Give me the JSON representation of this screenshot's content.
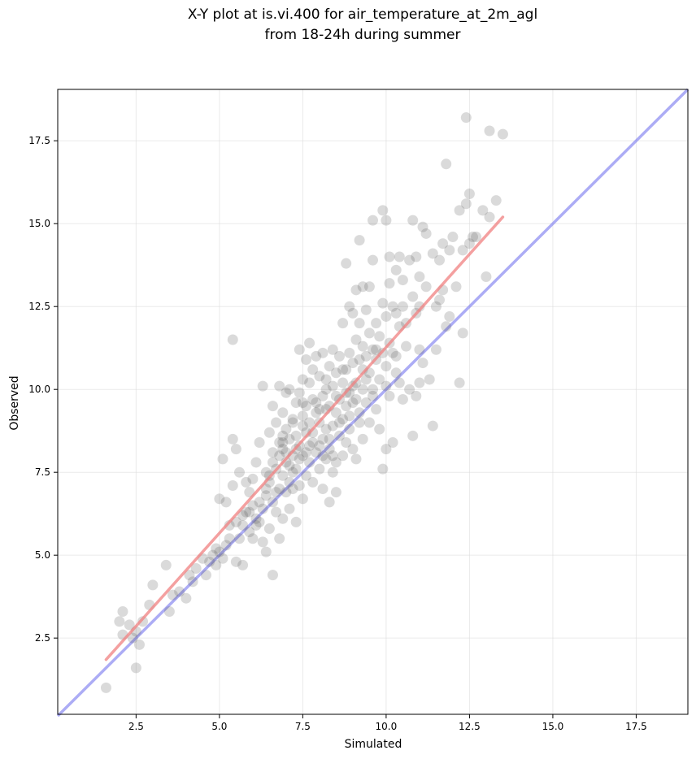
{
  "chart_data": {
    "type": "scatter",
    "title_lines": [
      "X-Y plot at is.vi.400 for air_temperature_at_2m_agl",
      "from 18-24h during summer"
    ],
    "xlabel": "Simulated",
    "ylabel": "Observed",
    "xlim": [
      0.15,
      19.05
    ],
    "ylim": [
      0.2,
      19.05
    ],
    "xticks": [
      2.5,
      5.0,
      7.5,
      10.0,
      12.5,
      15.0,
      17.5
    ],
    "yticks": [
      2.5,
      5.0,
      7.5,
      10.0,
      12.5,
      15.0,
      17.5
    ],
    "xtick_labels": [
      "2.5",
      "5.0",
      "7.5",
      "10.0",
      "12.5",
      "15.0",
      "17.5"
    ],
    "ytick_labels": [
      "2.5",
      "5.0",
      "7.5",
      "10.0",
      "12.5",
      "15.0",
      "17.5"
    ],
    "grid": true,
    "colors": {
      "points": "#555555",
      "fit_line": "#f08080",
      "identity_line": "#8080f0"
    },
    "fit_line": {
      "x": [
        1.6,
        13.5
      ],
      "y": [
        1.85,
        15.2
      ]
    },
    "identity_line": {
      "x": [
        0.15,
        19.05
      ],
      "y": [
        0.15,
        19.05
      ]
    },
    "points": [
      [
        1.6,
        1.0
      ],
      [
        2.0,
        3.0
      ],
      [
        2.1,
        3.3
      ],
      [
        2.1,
        2.6
      ],
      [
        2.3,
        2.9
      ],
      [
        2.4,
        2.5
      ],
      [
        2.5,
        2.7
      ],
      [
        2.5,
        1.6
      ],
      [
        2.6,
        2.3
      ],
      [
        2.7,
        3.0
      ],
      [
        2.9,
        3.5
      ],
      [
        3.0,
        4.1
      ],
      [
        3.4,
        4.7
      ],
      [
        3.5,
        3.3
      ],
      [
        3.6,
        3.8
      ],
      [
        3.8,
        3.9
      ],
      [
        4.0,
        3.7
      ],
      [
        4.1,
        4.4
      ],
      [
        4.2,
        4.2
      ],
      [
        4.3,
        4.6
      ],
      [
        4.5,
        4.9
      ],
      [
        4.6,
        4.4
      ],
      [
        4.7,
        4.8
      ],
      [
        4.8,
        5.0
      ],
      [
        4.9,
        4.7
      ],
      [
        5.0,
        6.7
      ],
      [
        5.0,
        5.1
      ],
      [
        5.1,
        7.9
      ],
      [
        5.1,
        4.9
      ],
      [
        5.2,
        6.6
      ],
      [
        5.2,
        5.3
      ],
      [
        5.3,
        5.9
      ],
      [
        5.4,
        7.1
      ],
      [
        5.4,
        11.5
      ],
      [
        5.4,
        8.5
      ],
      [
        5.5,
        8.2
      ],
      [
        5.5,
        6.0
      ],
      [
        5.5,
        4.8
      ],
      [
        5.6,
        7.5
      ],
      [
        5.6,
        5.5
      ],
      [
        5.7,
        6.2
      ],
      [
        5.7,
        4.7
      ],
      [
        5.8,
        7.2
      ],
      [
        5.8,
        6.3
      ],
      [
        5.9,
        6.9
      ],
      [
        5.9,
        5.7
      ],
      [
        6.0,
        7.3
      ],
      [
        6.0,
        6.5
      ],
      [
        6.0,
        5.5
      ],
      [
        6.1,
        7.8
      ],
      [
        6.1,
        5.9
      ],
      [
        6.2,
        8.4
      ],
      [
        6.2,
        6.0
      ],
      [
        6.3,
        6.4
      ],
      [
        6.3,
        5.4
      ],
      [
        6.3,
        10.1
      ],
      [
        6.4,
        7.5
      ],
      [
        6.4,
        6.8
      ],
      [
        6.4,
        5.1
      ],
      [
        6.5,
        8.7
      ],
      [
        6.5,
        7.2
      ],
      [
        6.5,
        5.8
      ],
      [
        6.6,
        9.5
      ],
      [
        6.6,
        8.1
      ],
      [
        6.6,
        6.6
      ],
      [
        6.6,
        4.4
      ],
      [
        6.7,
        9.0
      ],
      [
        6.7,
        7.6
      ],
      [
        6.7,
        6.3
      ],
      [
        6.8,
        10.1
      ],
      [
        6.8,
        8.4
      ],
      [
        6.8,
        7.0
      ],
      [
        6.8,
        5.5
      ],
      [
        6.9,
        9.3
      ],
      [
        6.9,
        8.2
      ],
      [
        6.9,
        7.4
      ],
      [
        6.9,
        6.1
      ],
      [
        7.0,
        9.9
      ],
      [
        7.0,
        8.8
      ],
      [
        7.0,
        7.8
      ],
      [
        7.0,
        6.9
      ],
      [
        7.1,
        10.0
      ],
      [
        7.1,
        8.5
      ],
      [
        7.1,
        7.2
      ],
      [
        7.1,
        6.4
      ],
      [
        7.2,
        9.1
      ],
      [
        7.2,
        8.0
      ],
      [
        7.2,
        7.0
      ],
      [
        7.3,
        9.6
      ],
      [
        7.3,
        8.6
      ],
      [
        7.3,
        7.6
      ],
      [
        7.3,
        6.0
      ],
      [
        7.4,
        11.2
      ],
      [
        7.4,
        9.9
      ],
      [
        7.4,
        8.3
      ],
      [
        7.4,
        7.1
      ],
      [
        7.5,
        10.3
      ],
      [
        7.5,
        9.2
      ],
      [
        7.5,
        8.0
      ],
      [
        7.5,
        6.7
      ],
      [
        7.6,
        10.9
      ],
      [
        7.6,
        9.5
      ],
      [
        7.6,
        8.7
      ],
      [
        7.6,
        7.4
      ],
      [
        7.7,
        11.4
      ],
      [
        7.7,
        10.2
      ],
      [
        7.7,
        9.0
      ],
      [
        7.7,
        7.8
      ],
      [
        7.8,
        10.6
      ],
      [
        7.8,
        9.7
      ],
      [
        7.8,
        8.4
      ],
      [
        7.8,
        7.2
      ],
      [
        7.9,
        11.0
      ],
      [
        7.9,
        9.3
      ],
      [
        7.9,
        8.1
      ],
      [
        8.0,
        10.4
      ],
      [
        8.0,
        9.0
      ],
      [
        8.0,
        7.6
      ],
      [
        8.1,
        11.1
      ],
      [
        8.1,
        9.8
      ],
      [
        8.1,
        8.5
      ],
      [
        8.1,
        7.0
      ],
      [
        8.2,
        10.0
      ],
      [
        8.2,
        8.8
      ],
      [
        8.2,
        7.9
      ],
      [
        8.3,
        10.7
      ],
      [
        8.3,
        9.5
      ],
      [
        8.3,
        8.2
      ],
      [
        8.3,
        6.6
      ],
      [
        8.4,
        11.2
      ],
      [
        8.4,
        10.1
      ],
      [
        8.4,
        8.9
      ],
      [
        8.4,
        7.5
      ],
      [
        8.5,
        10.5
      ],
      [
        8.5,
        9.3
      ],
      [
        8.5,
        7.8
      ],
      [
        8.5,
        6.9
      ],
      [
        8.6,
        11.0
      ],
      [
        8.6,
        9.7
      ],
      [
        8.6,
        8.6
      ],
      [
        8.7,
        12.0
      ],
      [
        8.7,
        10.2
      ],
      [
        8.7,
        9.1
      ],
      [
        8.7,
        8.0
      ],
      [
        8.8,
        13.8
      ],
      [
        8.8,
        10.6
      ],
      [
        8.8,
        9.5
      ],
      [
        8.8,
        8.4
      ],
      [
        8.9,
        12.5
      ],
      [
        8.9,
        11.1
      ],
      [
        8.9,
        9.9
      ],
      [
        8.9,
        8.8
      ],
      [
        9.0,
        12.3
      ],
      [
        9.0,
        10.8
      ],
      [
        9.0,
        9.6
      ],
      [
        9.0,
        8.2
      ],
      [
        9.1,
        13.0
      ],
      [
        9.1,
        11.5
      ],
      [
        9.1,
        10.2
      ],
      [
        9.1,
        7.9
      ],
      [
        9.2,
        14.5
      ],
      [
        9.2,
        12.0
      ],
      [
        9.2,
        10.9
      ],
      [
        9.2,
        9.3
      ],
      [
        9.3,
        13.1
      ],
      [
        9.3,
        11.3
      ],
      [
        9.3,
        10.0
      ],
      [
        9.3,
        8.5
      ],
      [
        9.4,
        12.4
      ],
      [
        9.4,
        11.0
      ],
      [
        9.4,
        9.6
      ],
      [
        9.5,
        13.1
      ],
      [
        9.5,
        11.7
      ],
      [
        9.5,
        10.5
      ],
      [
        9.5,
        9.0
      ],
      [
        9.6,
        15.1
      ],
      [
        9.6,
        13.9
      ],
      [
        9.6,
        11.2
      ],
      [
        9.6,
        9.8
      ],
      [
        9.7,
        12.0
      ],
      [
        9.7,
        10.9
      ],
      [
        9.7,
        9.4
      ],
      [
        9.8,
        11.6
      ],
      [
        9.8,
        10.3
      ],
      [
        9.8,
        8.8
      ],
      [
        9.9,
        15.4
      ],
      [
        9.9,
        12.6
      ],
      [
        9.9,
        11.1
      ],
      [
        9.9,
        7.6
      ],
      [
        10.0,
        15.1
      ],
      [
        10.0,
        12.2
      ],
      [
        10.0,
        10.7
      ],
      [
        10.0,
        8.2
      ],
      [
        10.1,
        14.0
      ],
      [
        10.1,
        13.2
      ],
      [
        10.1,
        11.4
      ],
      [
        10.1,
        9.8
      ],
      [
        10.2,
        12.5
      ],
      [
        10.2,
        11.1
      ],
      [
        10.2,
        8.4
      ],
      [
        10.3,
        13.6
      ],
      [
        10.3,
        12.3
      ],
      [
        10.3,
        10.5
      ],
      [
        10.4,
        14.0
      ],
      [
        10.4,
        11.9
      ],
      [
        10.4,
        10.2
      ],
      [
        10.5,
        13.3
      ],
      [
        10.5,
        12.5
      ],
      [
        10.5,
        9.7
      ],
      [
        10.6,
        11.3
      ],
      [
        10.7,
        13.9
      ],
      [
        10.7,
        10.0
      ],
      [
        10.8,
        15.1
      ],
      [
        10.8,
        12.8
      ],
      [
        10.8,
        8.6
      ],
      [
        10.9,
        14.0
      ],
      [
        10.9,
        12.3
      ],
      [
        10.9,
        9.8
      ],
      [
        11.0,
        13.4
      ],
      [
        11.0,
        11.2
      ],
      [
        11.0,
        10.2
      ],
      [
        11.1,
        14.9
      ],
      [
        11.1,
        10.8
      ],
      [
        11.2,
        14.7
      ],
      [
        11.2,
        13.1
      ],
      [
        11.3,
        10.3
      ],
      [
        11.4,
        14.1
      ],
      [
        11.4,
        8.9
      ],
      [
        11.5,
        12.5
      ],
      [
        11.5,
        11.2
      ],
      [
        11.6,
        13.9
      ],
      [
        11.6,
        12.7
      ],
      [
        11.7,
        14.4
      ],
      [
        11.7,
        13.0
      ],
      [
        11.8,
        16.8
      ],
      [
        11.8,
        11.9
      ],
      [
        11.9,
        14.2
      ],
      [
        11.9,
        12.2
      ],
      [
        12.0,
        14.6
      ],
      [
        12.1,
        13.1
      ],
      [
        12.2,
        15.4
      ],
      [
        12.2,
        10.2
      ],
      [
        12.3,
        14.2
      ],
      [
        12.3,
        11.7
      ],
      [
        12.4,
        18.2
      ],
      [
        12.4,
        15.6
      ],
      [
        12.5,
        15.9
      ],
      [
        12.5,
        14.4
      ],
      [
        12.6,
        14.6
      ],
      [
        12.7,
        14.6
      ],
      [
        12.9,
        15.4
      ],
      [
        13.0,
        13.4
      ],
      [
        13.1,
        17.8
      ],
      [
        13.1,
        15.2
      ],
      [
        13.3,
        15.7
      ],
      [
        13.5,
        17.7
      ],
      [
        6.6,
        7.8
      ],
      [
        6.9,
        8.4
      ],
      [
        7.2,
        7.5
      ],
      [
        7.6,
        8.1
      ],
      [
        7.8,
        8.7
      ],
      [
        8.0,
        8.3
      ],
      [
        8.2,
        9.4
      ],
      [
        8.4,
        8.0
      ],
      [
        8.6,
        9.0
      ],
      [
        8.8,
        9.9
      ],
      [
        9.0,
        10.1
      ],
      [
        9.2,
        9.0
      ],
      [
        9.4,
        10.3
      ],
      [
        9.6,
        10.0
      ],
      [
        7.4,
        7.9
      ],
      [
        7.0,
        8.1
      ],
      [
        6.7,
        6.9
      ],
      [
        6.4,
        7.0
      ],
      [
        6.2,
        6.6
      ],
      [
        6.8,
        8.0
      ],
      [
        7.5,
        8.9
      ],
      [
        7.9,
        9.6
      ],
      [
        8.3,
        8.5
      ],
      [
        8.5,
        9.8
      ],
      [
        8.9,
        9.2
      ],
      [
        9.3,
        10.6
      ],
      [
        9.7,
        11.2
      ],
      [
        10.0,
        10.1
      ],
      [
        10.3,
        11.0
      ],
      [
        10.6,
        12.0
      ],
      [
        11.0,
        12.5
      ],
      [
        7.1,
        7.7
      ],
      [
        7.3,
        8.2
      ],
      [
        7.7,
        8.3
      ],
      [
        8.1,
        8.0
      ],
      [
        8.7,
        10.6
      ],
      [
        9.1,
        9.7
      ],
      [
        6.5,
        7.4
      ],
      [
        6.1,
        6.1
      ],
      [
        5.9,
        6.3
      ],
      [
        5.7,
        5.9
      ],
      [
        5.3,
        5.5
      ],
      [
        4.9,
        5.2
      ],
      [
        8.0,
        9.4
      ],
      [
        8.2,
        10.3
      ],
      [
        7.5,
        9.6
      ],
      [
        7.2,
        9.0
      ],
      [
        6.9,
        8.6
      ]
    ]
  }
}
